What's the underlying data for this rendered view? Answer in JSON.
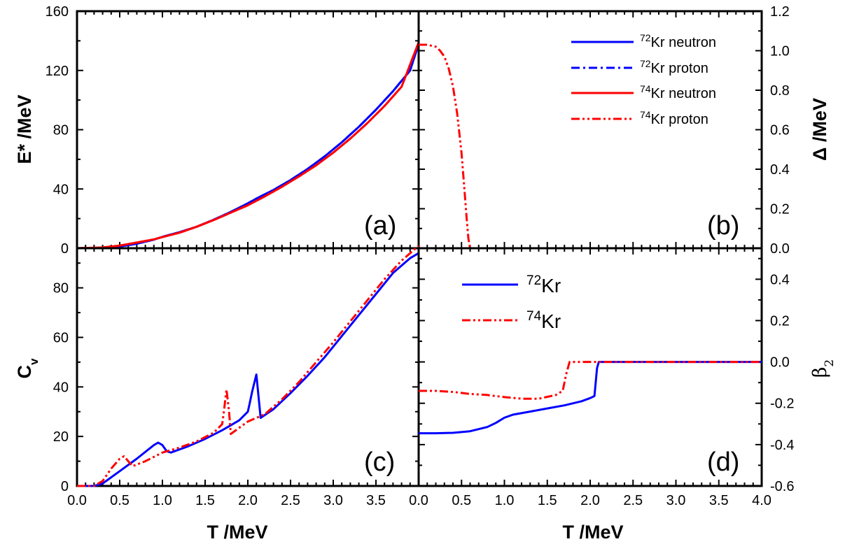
{
  "chart_data": [
    {
      "panel": "a",
      "type": "line",
      "panel_label": "(a)",
      "xlabel": "",
      "ylabel": "E* /MeV",
      "xlim": [
        0,
        4.0
      ],
      "ylim": [
        0,
        160
      ],
      "yticks": [
        "0",
        "40",
        "80",
        "120",
        "160"
      ],
      "series": [
        {
          "nucleus": "72",
          "label": "Kr neutron",
          "color": "#0000ff",
          "dash": "solid",
          "x": [
            0,
            0.3,
            0.5,
            0.7,
            0.9,
            1.0,
            1.2,
            1.4,
            1.6,
            1.8,
            2.0,
            2.1,
            2.3,
            2.5,
            2.7,
            2.9,
            3.1,
            3.3,
            3.5,
            3.7,
            3.9,
            4.0
          ],
          "y": [
            0,
            0.3,
            1.2,
            3.0,
            5.8,
            7.7,
            10.8,
            14.5,
            19.2,
            24.5,
            30.3,
            33.5,
            39.3,
            46.0,
            53.5,
            62.0,
            71.5,
            82.0,
            93.5,
            106,
            120,
            138
          ]
        },
        {
          "nucleus": "72",
          "label": "Kr proton",
          "color": "#0000ff",
          "dash": "dashdot",
          "x": [
            0,
            0.3,
            0.5,
            0.7,
            0.9,
            1.0,
            1.2,
            1.4,
            1.6,
            1.8,
            2.0,
            2.1,
            2.3,
            2.5,
            2.7,
            2.9,
            3.1,
            3.3,
            3.5,
            3.7,
            3.9,
            4.0
          ],
          "y": [
            0,
            0.3,
            1.2,
            3.0,
            5.8,
            7.7,
            10.8,
            14.5,
            19.2,
            24.5,
            30.3,
            33.5,
            39.3,
            46.0,
            53.5,
            62.0,
            71.5,
            82.0,
            93.5,
            106,
            120,
            138
          ]
        },
        {
          "nucleus": "74",
          "label": "Kr neutron",
          "color": "#ff0000",
          "dash": "solid",
          "x": [
            0,
            0.3,
            0.5,
            0.7,
            0.9,
            1.0,
            1.2,
            1.4,
            1.6,
            1.8,
            2.0,
            2.2,
            2.4,
            2.6,
            2.8,
            3.0,
            3.2,
            3.4,
            3.6,
            3.8,
            4.0
          ],
          "y": [
            0,
            0.5,
            1.8,
            3.8,
            6.0,
            7.5,
            10.5,
            14.5,
            19.0,
            24.0,
            29.0,
            35.0,
            41.5,
            48.5,
            56.0,
            64.5,
            74.0,
            84.5,
            96.0,
            109,
            139
          ]
        },
        {
          "nucleus": "74",
          "label": "Kr proton",
          "color": "#ff0000",
          "dash": "dashdotdot",
          "x": [
            0,
            0.3,
            0.5,
            0.7,
            0.9,
            1.0,
            1.2,
            1.4,
            1.6,
            1.8,
            2.0,
            2.2,
            2.4,
            2.6,
            2.8,
            3.0,
            3.2,
            3.4,
            3.6,
            3.8,
            4.0
          ],
          "y": [
            0,
            0.5,
            1.8,
            3.8,
            6.0,
            7.5,
            10.5,
            14.5,
            19.0,
            24.0,
            29.0,
            35.0,
            41.5,
            48.5,
            56.0,
            64.5,
            74.0,
            84.5,
            96.0,
            109,
            139
          ]
        }
      ]
    },
    {
      "panel": "b",
      "type": "line",
      "panel_label": "(b)",
      "xlabel": "",
      "ylabel": "Δ /MeV",
      "xlim": [
        0,
        4.0
      ],
      "ylim": [
        0,
        1.2
      ],
      "yticks": [
        "0.0",
        "0.2",
        "0.4",
        "0.6",
        "0.8",
        "1.0",
        "1.2"
      ],
      "series": [
        {
          "nucleus": "74",
          "label": "Kr proton",
          "color": "#ff0000",
          "dash": "dashdotdot",
          "x": [
            0,
            0.05,
            0.1,
            0.15,
            0.2,
            0.25,
            0.3,
            0.35,
            0.4,
            0.45,
            0.5,
            0.53,
            0.56,
            0.58,
            0.6
          ],
          "y": [
            1.03,
            1.03,
            1.03,
            1.025,
            1.02,
            1.0,
            0.97,
            0.91,
            0.82,
            0.68,
            0.48,
            0.32,
            0.15,
            0.05,
            0.0
          ]
        }
      ]
    },
    {
      "panel": "c",
      "type": "line",
      "panel_label": "(c)",
      "xlabel": "T /MeV",
      "ylabel": "C",
      "ylabel_sub": "v",
      "xlim": [
        0,
        4.0
      ],
      "ylim": [
        0,
        96
      ],
      "xticks": [
        "0.0",
        "0.5",
        "1.0",
        "1.5",
        "2.0",
        "2.5",
        "3.0",
        "3.5"
      ],
      "yticks": [
        "0",
        "20",
        "40",
        "60",
        "80"
      ],
      "series": [
        {
          "nucleus": "72",
          "label": "Kr",
          "color": "#0000ff",
          "dash": "solid",
          "x": [
            0,
            0.2,
            0.3,
            0.5,
            0.7,
            0.9,
            0.95,
            1.0,
            1.05,
            1.1,
            1.3,
            1.5,
            1.7,
            1.9,
            2.0,
            2.02,
            2.05,
            2.1,
            2.15,
            2.3,
            2.5,
            2.7,
            2.9,
            3.1,
            3.3,
            3.5,
            3.7,
            3.9,
            4.0
          ],
          "y": [
            0,
            0,
            1,
            6,
            11,
            16.5,
            17.5,
            16.5,
            14,
            13.5,
            16,
            19,
            22.5,
            26.5,
            30,
            33,
            38,
            45,
            27.5,
            31,
            37.5,
            44.5,
            52,
            60.5,
            69,
            77.5,
            86,
            92,
            94
          ]
        },
        {
          "nucleus": "74",
          "label": "Kr",
          "color": "#ff0000",
          "dash": "dashdotdot",
          "x": [
            0,
            0.2,
            0.3,
            0.4,
            0.5,
            0.55,
            0.6,
            0.65,
            0.8,
            1.0,
            1.2,
            1.4,
            1.6,
            1.7,
            1.72,
            1.75,
            1.78,
            1.8,
            2.0,
            2.2,
            2.4,
            2.6,
            2.8,
            3.0,
            3.2,
            3.4,
            3.6,
            3.8,
            4.0
          ],
          "y": [
            0,
            0,
            2,
            7,
            11,
            12,
            10,
            8,
            10,
            13.5,
            15.5,
            18,
            21.5,
            25,
            30,
            39,
            30,
            21,
            26,
            29,
            35,
            42,
            50,
            58,
            66.5,
            75,
            83.5,
            91,
            97
          ]
        }
      ]
    },
    {
      "panel": "d",
      "type": "line",
      "panel_label": "(d)",
      "xlabel": "T /MeV",
      "ylabel": "β",
      "ylabel_sub": "2",
      "xlim": [
        0,
        4.0
      ],
      "ylim": [
        -0.6,
        0.55
      ],
      "xticks": [
        "0.0",
        "0.5",
        "1.0",
        "1.5",
        "2.0",
        "2.5",
        "3.0",
        "3.5",
        "4.0"
      ],
      "yticks": [
        "-0.6",
        "-0.4",
        "-0.2",
        "0.0",
        "0.2",
        "0.4"
      ],
      "series": [
        {
          "nucleus": "72",
          "label": "Kr",
          "color": "#0000ff",
          "dash": "solid",
          "x": [
            0,
            0.2,
            0.4,
            0.6,
            0.8,
            0.9,
            1.0,
            1.1,
            1.3,
            1.5,
            1.7,
            1.9,
            2.0,
            2.05,
            2.08,
            2.1,
            2.5,
            3.0,
            3.5,
            4.0
          ],
          "y": [
            -0.345,
            -0.345,
            -0.343,
            -0.335,
            -0.315,
            -0.295,
            -0.27,
            -0.255,
            -0.24,
            -0.225,
            -0.21,
            -0.19,
            -0.175,
            -0.165,
            -0.03,
            0.0,
            0.0,
            0.0,
            0.0,
            0.0
          ]
        },
        {
          "nucleus": "74",
          "label": "Kr",
          "color": "#ff0000",
          "dash": "dashdotdot",
          "x": [
            0,
            0.2,
            0.4,
            0.6,
            0.8,
            1.0,
            1.2,
            1.4,
            1.6,
            1.68,
            1.72,
            1.76,
            1.8,
            2.0,
            2.5,
            3.0,
            3.5,
            4.0
          ],
          "y": [
            -0.14,
            -0.14,
            -0.145,
            -0.155,
            -0.16,
            -0.17,
            -0.178,
            -0.178,
            -0.16,
            -0.14,
            -0.06,
            0.0,
            0.0,
            0.0,
            0.0,
            0.0,
            0.0,
            0.0
          ]
        }
      ]
    }
  ],
  "legend_b": [
    {
      "nucleus": "72",
      "label": "Kr neutron",
      "color": "#0000ff",
      "dash": "solid"
    },
    {
      "nucleus": "72",
      "label": "Kr proton",
      "color": "#0000ff",
      "dash": "dashdot"
    },
    {
      "nucleus": "74",
      "label": "Kr neutron",
      "color": "#ff0000",
      "dash": "solid"
    },
    {
      "nucleus": "74",
      "label": "Kr proton",
      "color": "#ff0000",
      "dash": "dashdotdot"
    }
  ],
  "legend_d": [
    {
      "nucleus": "72",
      "label": "Kr",
      "color": "#0000ff",
      "dash": "solid"
    },
    {
      "nucleus": "74",
      "label": "Kr",
      "color": "#ff0000",
      "dash": "dashdotdot"
    }
  ]
}
